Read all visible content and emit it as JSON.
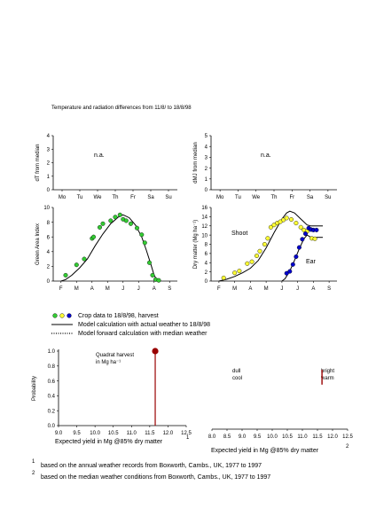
{
  "page_title": "Temperature and radiation differences from 11/8/ to 18/8/98",
  "legend": {
    "crop_data": "Crop data to 18/8/98, harvest",
    "model_actual": "Model calculation with actual weather to 18/8/98",
    "model_median": "Model forward calculation with median weather"
  },
  "footnotes": {
    "n1": "based on the annual weather records from Boxworth, Cambs., UK,  1977 to 1997",
    "n2": "based on the median weather conditions from Boxworth, Cambs., UK, 1977 to 1997"
  },
  "colors": {
    "green": "#33cc33",
    "yellow": "#ffff33",
    "blue": "#0000cc",
    "harvest": "#990000",
    "line": "#000000"
  },
  "chart_data": [
    {
      "id": "dT",
      "type": "line",
      "ylabel": "dT from median",
      "categories": [
        "Mo",
        "Tu",
        "We",
        "Th",
        "Fr",
        "Sa",
        "Su"
      ],
      "ylim": [
        0,
        4
      ],
      "yticks": [
        "0",
        "1",
        "2",
        "3",
        "4"
      ],
      "annotation": "n.a.",
      "series": []
    },
    {
      "id": "dMJ",
      "type": "line",
      "ylabel": "dMJ from median",
      "categories": [
        "Mo",
        "Tu",
        "We",
        "Th",
        "Fr",
        "Sa",
        "Su"
      ],
      "ylim": [
        0,
        5
      ],
      "yticks": [
        "0",
        "1",
        "2",
        "3",
        "4",
        "5"
      ],
      "annotation": "n.a.",
      "series": []
    },
    {
      "id": "gai",
      "type": "scatter",
      "ylabel": "Green Area Index",
      "categories": [
        "F",
        "M",
        "A",
        "M",
        "J",
        "J",
        "A",
        "S"
      ],
      "ylim": [
        0,
        10
      ],
      "yticks": [
        "0",
        "2",
        "4",
        "6",
        "8",
        "10"
      ],
      "model_line": [
        [
          0,
          0
        ],
        [
          0.3,
          0.2
        ],
        [
          0.7,
          0.8
        ],
        [
          1.2,
          1.8
        ],
        [
          1.7,
          3
        ],
        [
          2.2,
          4.8
        ],
        [
          2.7,
          6.4
        ],
        [
          3.2,
          7.8
        ],
        [
          3.7,
          8.7
        ],
        [
          4,
          9
        ],
        [
          4.4,
          8.6
        ],
        [
          4.8,
          7.6
        ],
        [
          5.2,
          6
        ],
        [
          5.5,
          4.2
        ],
        [
          5.8,
          2.2
        ],
        [
          6,
          0.8
        ],
        [
          6.2,
          0.1
        ],
        [
          6.4,
          0
        ]
      ],
      "points": [
        [
          0.3,
          0.8
        ],
        [
          1,
          2.2
        ],
        [
          1.5,
          3
        ],
        [
          2,
          5.8
        ],
        [
          2.1,
          6
        ],
        [
          2.5,
          7.3
        ],
        [
          2.7,
          7.8
        ],
        [
          3.2,
          8.2
        ],
        [
          3.5,
          8.7
        ],
        [
          3.8,
          9
        ],
        [
          4,
          8.4
        ],
        [
          4.2,
          8.2
        ],
        [
          4.5,
          7.8
        ],
        [
          4.9,
          7.2
        ],
        [
          5.2,
          6.3
        ],
        [
          5.4,
          5.2
        ],
        [
          5.7,
          2.5
        ],
        [
          5.9,
          0.8
        ],
        [
          6.1,
          0.2
        ],
        [
          6.3,
          0.1
        ]
      ]
    },
    {
      "id": "dm",
      "type": "scatter",
      "ylabel": "Dry matter (Mg ha⁻¹)",
      "categories": [
        "F",
        "M",
        "A",
        "M",
        "J",
        "J",
        "A",
        "S"
      ],
      "ylim": [
        0,
        16
      ],
      "yticks": [
        "0",
        "2",
        "4",
        "6",
        "8",
        "10",
        "12",
        "14",
        "16"
      ],
      "annotations": [
        "Shoot",
        "Ear"
      ],
      "model_shoot": [
        [
          0,
          0
        ],
        [
          0.5,
          0.4
        ],
        [
          1,
          1
        ],
        [
          1.5,
          1.8
        ],
        [
          2,
          2.8
        ],
        [
          2.5,
          4.5
        ],
        [
          3,
          7.2
        ],
        [
          3.5,
          10.5
        ],
        [
          4,
          13.5
        ],
        [
          4.3,
          14.8
        ],
        [
          4.5,
          15.2
        ],
        [
          4.8,
          14.8
        ],
        [
          5.2,
          13.5
        ],
        [
          5.6,
          12.2
        ],
        [
          5.85,
          12
        ]
      ],
      "shoot_median": [
        [
          5.85,
          12
        ],
        [
          6.6,
          12
        ]
      ],
      "model_ear": [
        [
          4,
          0
        ],
        [
          4.2,
          0.5
        ],
        [
          4.5,
          2.2
        ],
        [
          4.8,
          4.5
        ],
        [
          5.1,
          7
        ],
        [
          5.4,
          9.2
        ],
        [
          5.6,
          10
        ],
        [
          5.85,
          9.5
        ]
      ],
      "ear_median": [
        [
          5.85,
          9.5
        ],
        [
          6.6,
          9.5
        ]
      ],
      "shoot_points": [
        [
          0.3,
          0.7
        ],
        [
          1,
          1.8
        ],
        [
          1.3,
          2.2
        ],
        [
          1.8,
          3.8
        ],
        [
          2.1,
          4.2
        ],
        [
          2.4,
          5.5
        ],
        [
          2.6,
          6.5
        ],
        [
          2.9,
          8
        ],
        [
          3.1,
          9.3
        ],
        [
          3.3,
          11.7
        ],
        [
          3.5,
          12.2
        ],
        [
          3.7,
          12.6
        ],
        [
          3.9,
          12.9
        ],
        [
          4.1,
          13.3
        ],
        [
          4.3,
          13.7
        ],
        [
          4.6,
          13.4
        ],
        [
          4.9,
          12.6
        ],
        [
          5.2,
          11.7
        ],
        [
          5.4,
          11.1
        ],
        [
          5.6,
          10.8
        ],
        [
          5.9,
          9.3
        ],
        [
          6.1,
          9.2
        ]
      ],
      "ear_points": [
        [
          4.3,
          1.7
        ],
        [
          4.5,
          2.1
        ],
        [
          4.7,
          3.6
        ],
        [
          4.9,
          5.3
        ],
        [
          5.1,
          7.3
        ],
        [
          5.3,
          9.1
        ],
        [
          5.5,
          10.3
        ],
        [
          5.7,
          11.5
        ],
        [
          5.85,
          11.2
        ],
        [
          6,
          11.1
        ],
        [
          6.2,
          11.1
        ]
      ]
    },
    {
      "id": "yield",
      "type": "bar",
      "xlabel": "Expected yield in Mg @85% dry matter",
      "xlabel_note": "1",
      "ylabel": "Probability",
      "xlim": [
        9,
        12.5
      ],
      "xticks": [
        "9.0",
        "9.5",
        "10.0",
        "10.5",
        "11.0",
        "11.5",
        "12.0",
        "12.5"
      ],
      "ylim": [
        0,
        1
      ],
      "yticks": [
        "0.0",
        "0.2",
        "0.4",
        "0.6",
        "0.8",
        "1.0"
      ],
      "annotation": "Quadrat harvest\nin Mg ha⁻¹",
      "harvest_x": 11.65,
      "harvest_y": 1.0
    },
    {
      "id": "weather",
      "type": "bar",
      "xlabel": "Expected yield in Mg @85% dry matter",
      "xlabel_note": "2",
      "xlim": [
        8,
        12.5
      ],
      "xticks": [
        "8.0",
        "8.5",
        "9.0",
        "9.5",
        "10.0",
        "10.5",
        "11.0",
        "11.5",
        "12.0",
        "12.5"
      ],
      "labels_left": "dull\ncool",
      "labels_right": "bright\nwarm",
      "harvest_x": 11.65,
      "harvest_range": [
        0.25,
        0.45
      ]
    }
  ]
}
